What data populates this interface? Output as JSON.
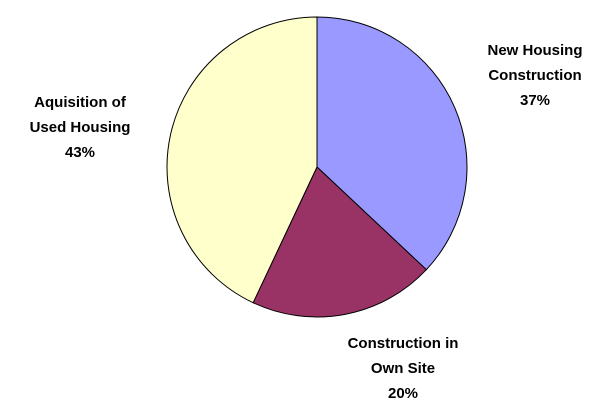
{
  "chart_data": {
    "type": "pie",
    "categories": [
      "New Housing Construction",
      "Construction in Own Site",
      "Aquisition of Used Housing"
    ],
    "values": [
      37,
      20,
      43
    ],
    "value_labels": [
      "37%",
      "20%",
      "43%"
    ],
    "colors": [
      "#9999ff",
      "#993366",
      "#ffffcc"
    ]
  }
}
